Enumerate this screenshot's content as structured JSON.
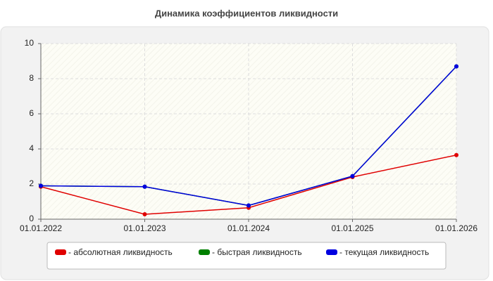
{
  "chart_data": {
    "type": "line",
    "title": "Динамика коэффициентов ликвидности",
    "categories": [
      "01.01.2022",
      "01.01.2023",
      "01.01.2024",
      "01.01.2025",
      "01.01.2026"
    ],
    "series": [
      {
        "name": "- абсолютная ликвидность",
        "color": "#e00000",
        "values": [
          1.85,
          0.28,
          0.65,
          2.4,
          3.65
        ]
      },
      {
        "name": "- быстрая ликвидность",
        "color": "#008000",
        "values": [
          1.9,
          1.85,
          0.78,
          2.45,
          8.7
        ]
      },
      {
        "name": "- текущая ликвидность",
        "color": "#0000e0",
        "values": [
          1.9,
          1.85,
          0.78,
          2.45,
          8.7
        ]
      }
    ],
    "ylim": [
      0,
      10
    ],
    "yticks": [
      0,
      2,
      4,
      6,
      8,
      10
    ],
    "grid": true
  }
}
